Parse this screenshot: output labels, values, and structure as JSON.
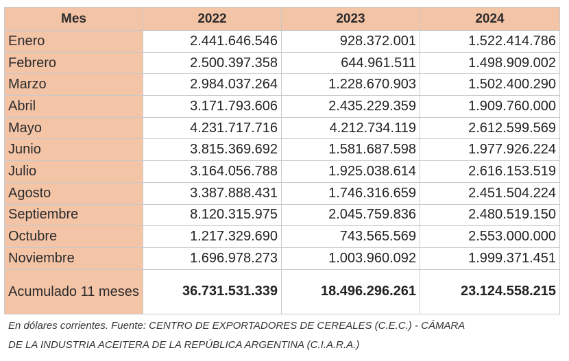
{
  "table": {
    "headers": [
      "Mes",
      "2022",
      "2023",
      "2024"
    ],
    "rows": [
      {
        "mes": "Enero",
        "values": [
          "2.441.646.546",
          "928.372.001",
          "1.522.414.786"
        ]
      },
      {
        "mes": "Febrero",
        "values": [
          "2.500.397.358",
          "644.961.511",
          "1.498.909.002"
        ]
      },
      {
        "mes": "Marzo",
        "values": [
          "2.984.037.264",
          "1.228.670.903",
          "1.502.400.290"
        ]
      },
      {
        "mes": "Abril",
        "values": [
          "3.171.793.606",
          "2.435.229.359",
          "1.909.760.000"
        ]
      },
      {
        "mes": "Mayo",
        "values": [
          "4.231.717.716",
          "4.212.734.119",
          "2.612.599.569"
        ]
      },
      {
        "mes": "Junio",
        "values": [
          "3.815.369.692",
          "1.581.687.598",
          "1.977.926.224"
        ]
      },
      {
        "mes": "Julio",
        "values": [
          "3.164.056.788",
          "1.925.038.614",
          "2.616.153.519"
        ]
      },
      {
        "mes": "Agosto",
        "values": [
          "3.387.888.431",
          "1.746.316.659",
          "2.451.504.224"
        ]
      },
      {
        "mes": "Septiembre",
        "values": [
          "8.120.315.975",
          "2.045.759.836",
          "2.480.519.150"
        ]
      },
      {
        "mes": "Octubre",
        "values": [
          "1.217.329.690",
          "743.565.569",
          "2.553.000.000"
        ]
      },
      {
        "mes": "Noviembre",
        "values": [
          "1.696.978.273",
          "1.003.960.092",
          "1.999.371.451"
        ]
      }
    ],
    "total": {
      "mes": "Acumulado 11 meses",
      "values": [
        "36.731.531.339",
        "18.496.296.261",
        "23.124.558.215"
      ]
    }
  },
  "footnote": {
    "line1": "En dólares corrientes. Fuente:   CENTRO DE EXPORTADORES DE CEREALES  (C.E.C.) - CÁMARA",
    "line2": "DE LA INDUSTRIA ACEITERA DE LA REPÚBLICA ARGENTINA (C.I.A.R.A.)"
  },
  "colors": {
    "header_bg": "#f4c4a7",
    "border": "#c9c9c9"
  }
}
